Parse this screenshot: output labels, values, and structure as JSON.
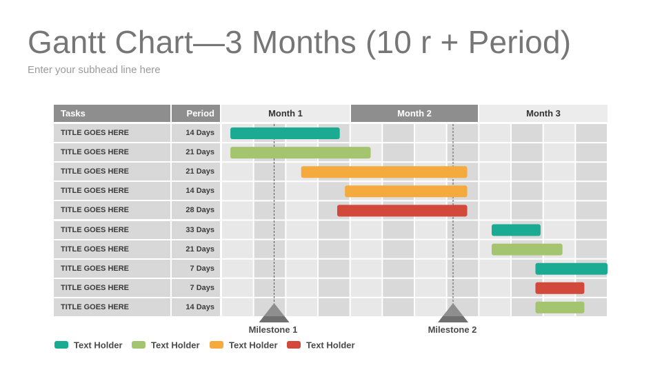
{
  "slide": {
    "title": "Gantt Chart—3 Months (10 r + Period)",
    "subtitle": "Enter your subhead line here"
  },
  "header": {
    "tasks": "Tasks",
    "period": "Period",
    "months": [
      "Month 1",
      "Month 2",
      "Month 3"
    ]
  },
  "colors": {
    "teal": "#1bab93",
    "green": "#a5c46f",
    "orange": "#f4aa3c",
    "red": "#d2483b"
  },
  "tasks": [
    {
      "title": "TITLE GOES HERE",
      "period": "14 Days",
      "color": "teal"
    },
    {
      "title": "TITLE GOES HERE",
      "period": "21 Days",
      "color": "green"
    },
    {
      "title": "TITLE GOES HERE",
      "period": "21 Days",
      "color": "orange"
    },
    {
      "title": "TITLE GOES HERE",
      "period": "14 Days",
      "color": "orange"
    },
    {
      "title": "TITLE GOES HERE",
      "period": "28 Days",
      "color": "red"
    },
    {
      "title": "TITLE GOES HERE",
      "period": "33 Days",
      "color": "teal"
    },
    {
      "title": "TITLE GOES HERE",
      "period": "21 Days",
      "color": "green"
    },
    {
      "title": "TITLE GOES HERE",
      "period": "7 Days",
      "color": "teal"
    },
    {
      "title": "TITLE GOES HERE",
      "period": "7 Days",
      "color": "red"
    },
    {
      "title": "TITLE GOES HERE",
      "period": "14 Days",
      "color": "green"
    }
  ],
  "chart_data": {
    "type": "gantt",
    "time_unit": "month",
    "axis_range": [
      0,
      3
    ],
    "columns_per_month": 4,
    "bars": [
      {
        "start": 0.07,
        "end": 0.92
      },
      {
        "start": 0.07,
        "end": 1.16
      },
      {
        "start": 0.62,
        "end": 1.91
      },
      {
        "start": 0.96,
        "end": 1.91
      },
      {
        "start": 0.9,
        "end": 1.91
      },
      {
        "start": 2.1,
        "end": 2.48
      },
      {
        "start": 2.1,
        "end": 2.65
      },
      {
        "start": 2.44,
        "end": 3.0
      },
      {
        "start": 2.44,
        "end": 2.82
      },
      {
        "start": 2.44,
        "end": 2.82
      }
    ],
    "milestones": [
      {
        "label": "Milestone 1",
        "at": 0.41
      },
      {
        "label": "Milestone 2",
        "at": 1.8
      }
    ]
  },
  "legend": [
    {
      "label": "Text Holder",
      "color": "teal"
    },
    {
      "label": "Text Holder",
      "color": "green"
    },
    {
      "label": "Text Holder",
      "color": "orange"
    },
    {
      "label": "Text Holder",
      "color": "red"
    }
  ]
}
